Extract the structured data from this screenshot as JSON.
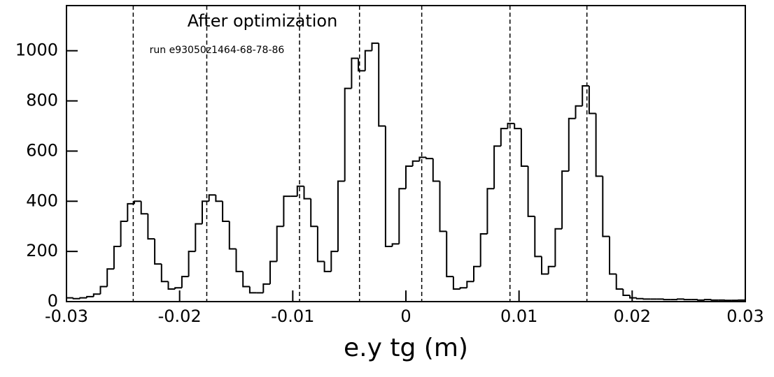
{
  "chart_data": {
    "type": "histogram",
    "title": "After optimization",
    "annotation": "run e93050z1464-68-78-86",
    "x_label": "e.y tg (m)",
    "bins": [
      -0.03,
      -0.0294,
      -0.0288,
      -0.0282,
      -0.0276,
      -0.027,
      -0.0264,
      -0.0258,
      -0.0252,
      -0.0246,
      -0.024,
      -0.0234,
      -0.0228,
      -0.0222,
      -0.0216,
      -0.021,
      -0.0204,
      -0.0198,
      -0.0192,
      -0.0186,
      -0.018,
      -0.0174,
      -0.0168,
      -0.0162,
      -0.0156,
      -0.015,
      -0.0144,
      -0.0138,
      -0.0132,
      -0.0126,
      -0.012,
      -0.0114,
      -0.0108,
      -0.0102,
      -0.0096,
      -0.009,
      -0.0084,
      -0.0078,
      -0.0072,
      -0.0066,
      -0.006,
      -0.0054,
      -0.0048,
      -0.0042,
      -0.0036,
      -0.003,
      -0.0024,
      -0.0018,
      -0.0012,
      -0.0006,
      0,
      0.0006,
      0.0012,
      0.0018,
      0.0024,
      0.003,
      0.0036,
      0.0042,
      0.0048,
      0.0054,
      0.006,
      0.0066,
      0.0072,
      0.0078,
      0.0084,
      0.009,
      0.0096,
      0.0102,
      0.0108,
      0.0114,
      0.012,
      0.0126,
      0.0132,
      0.0138,
      0.0144,
      0.015,
      0.0156,
      0.0162,
      0.0168,
      0.0174,
      0.018,
      0.0186,
      0.0192,
      0.0198,
      0.0204,
      0.021,
      0.0216,
      0.0222,
      0.0228,
      0.0234,
      0.024,
      0.0246,
      0.0252,
      0.0258,
      0.0264,
      0.027,
      0.0276,
      0.0282,
      0.0288,
      0.0294,
      0.03
    ],
    "values": [
      15,
      12,
      15,
      20,
      30,
      60,
      130,
      220,
      320,
      390,
      400,
      350,
      250,
      150,
      80,
      50,
      55,
      100,
      200,
      310,
      400,
      425,
      400,
      320,
      210,
      120,
      60,
      35,
      35,
      70,
      160,
      300,
      420,
      420,
      460,
      410,
      300,
      160,
      120,
      200,
      480,
      850,
      970,
      920,
      1000,
      1030,
      700,
      220,
      230,
      450,
      540,
      560,
      575,
      570,
      480,
      280,
      100,
      50,
      55,
      80,
      140,
      270,
      450,
      620,
      690,
      710,
      690,
      540,
      340,
      180,
      110,
      140,
      290,
      520,
      730,
      780,
      860,
      750,
      500,
      260,
      110,
      50,
      25,
      15,
      12,
      10,
      10,
      10,
      8,
      8,
      10,
      8,
      8,
      6,
      8,
      6,
      6,
      5,
      5,
      6
    ],
    "color": "#000000",
    "reference_lines_x": [
      -0.0241,
      -0.0176,
      -0.0094,
      -0.0041,
      0.0014,
      0.0092,
      0.016
    ],
    "xlim": [
      -0.03,
      0.03
    ],
    "xticks": [
      -0.03,
      -0.02,
      -0.01,
      0,
      0.01,
      0.02,
      0.03
    ],
    "ylim": [
      0,
      1180
    ],
    "yticks": [
      0,
      200,
      400,
      600,
      800,
      1000
    ],
    "grid": false
  }
}
